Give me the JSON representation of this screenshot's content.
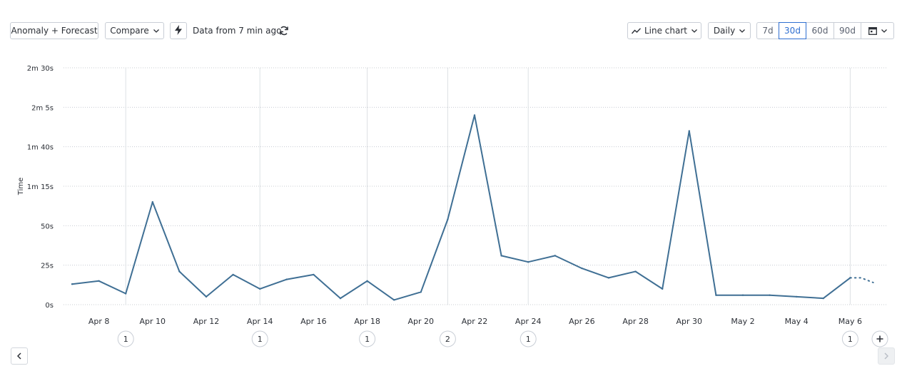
{
  "toolbar": {
    "anomaly_label": "Anomaly + Forecast",
    "compare_label": "Compare",
    "data_freshness": "Data from 7 min ago",
    "chart_type_label": "Line chart",
    "interval_label": "Daily",
    "ranges": [
      "7d",
      "30d",
      "60d",
      "90d"
    ],
    "active_range": "30d"
  },
  "colors": {
    "line": "#3f6f94",
    "accent": "#2f6fd1",
    "grid": "#c8ccd2"
  },
  "chart_data": {
    "type": "line",
    "ylabel": "Time",
    "y_unit": "seconds",
    "ylim": [
      0,
      150
    ],
    "y_ticks": [
      {
        "value": 0,
        "label": "0s"
      },
      {
        "value": 25,
        "label": "25s"
      },
      {
        "value": 50,
        "label": "50s"
      },
      {
        "value": 75,
        "label": "1m 15s"
      },
      {
        "value": 100,
        "label": "1m 40s"
      },
      {
        "value": 125,
        "label": "2m 5s"
      },
      {
        "value": 150,
        "label": "2m 30s"
      }
    ],
    "x": [
      "Apr 7",
      "Apr 8",
      "Apr 9",
      "Apr 10",
      "Apr 11",
      "Apr 12",
      "Apr 13",
      "Apr 14",
      "Apr 15",
      "Apr 16",
      "Apr 17",
      "Apr 18",
      "Apr 19",
      "Apr 20",
      "Apr 21",
      "Apr 22",
      "Apr 23",
      "Apr 24",
      "Apr 25",
      "Apr 26",
      "Apr 27",
      "Apr 28",
      "Apr 29",
      "Apr 30",
      "May 1",
      "May 2",
      "May 3",
      "May 4",
      "May 5",
      "May 6"
    ],
    "x_tick_labels": [
      "Apr 8",
      "Apr 10",
      "Apr 12",
      "Apr 14",
      "Apr 16",
      "Apr 18",
      "Apr 20",
      "Apr 22",
      "Apr 24",
      "Apr 26",
      "Apr 28",
      "Apr 30",
      "May 2",
      "May 4",
      "May 6"
    ],
    "values": [
      13,
      15,
      7,
      65,
      21,
      5,
      19,
      10,
      16,
      19,
      4,
      15,
      3,
      8,
      54,
      120,
      31,
      27,
      31,
      23,
      17,
      21,
      10,
      110,
      6,
      6,
      6,
      5,
      4,
      17
    ],
    "forecast_values": [
      17,
      14
    ],
    "grid": true,
    "annotations": [
      {
        "date": "Apr 9",
        "count": "1"
      },
      {
        "date": "Apr 14",
        "count": "1"
      },
      {
        "date": "Apr 18",
        "count": "1"
      },
      {
        "date": "Apr 21",
        "count": "2"
      },
      {
        "date": "Apr 24",
        "count": "1"
      },
      {
        "date": "May 6",
        "count": "1"
      }
    ]
  }
}
